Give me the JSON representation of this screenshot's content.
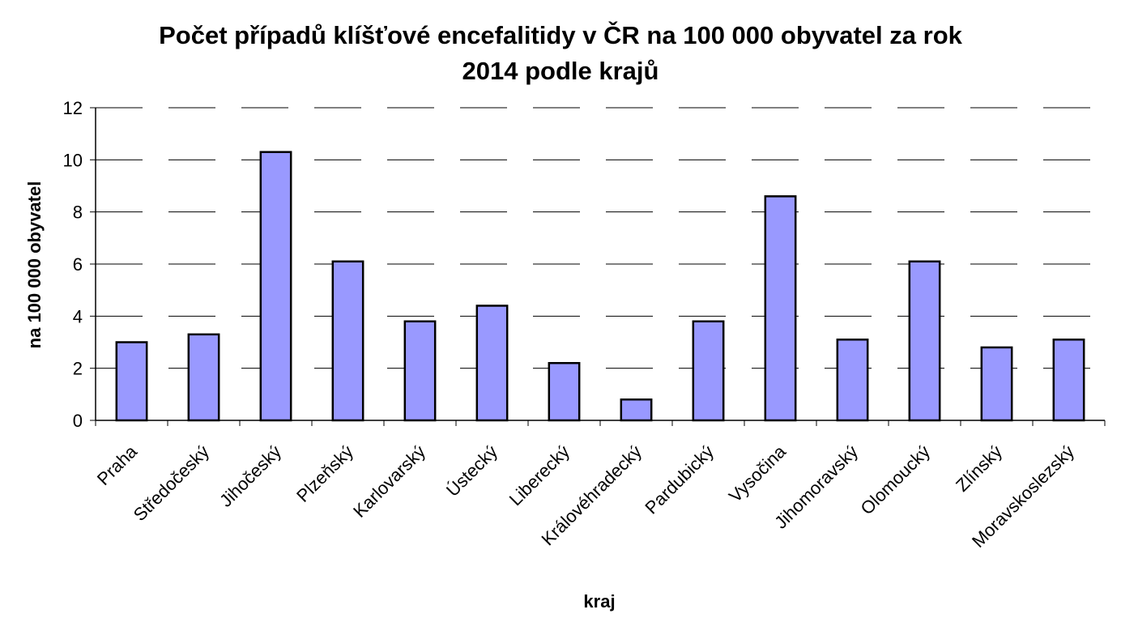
{
  "chart_data": {
    "type": "bar",
    "title_line1": "Počet případů klíšťové encefalitidy v ČR na 100 000 obyvatel za rok",
    "title_line2": "2014 podle krajů",
    "xlabel": "kraj",
    "ylabel": "na 100 000 obyvatel",
    "ylim": [
      0,
      12
    ],
    "yticks": [
      0,
      2,
      4,
      6,
      8,
      10,
      12
    ],
    "grid": "horizontal dashed",
    "legend": "none",
    "bar_color": "#9999ff",
    "categories": [
      "Praha",
      "Středočeský",
      "Jihočeský",
      "Plzeňský",
      "Karlovarský",
      "Ústecký",
      "Liberecký",
      "Královéhradecký",
      "Pardubický",
      "Vysočina",
      "Jihomoravský",
      "Olomoucký",
      "Zlínský",
      "Moravskoslezský"
    ],
    "values": [
      3.0,
      3.3,
      10.3,
      6.1,
      3.8,
      4.4,
      2.2,
      0.8,
      3.8,
      8.6,
      3.1,
      6.1,
      2.8,
      3.1
    ]
  }
}
